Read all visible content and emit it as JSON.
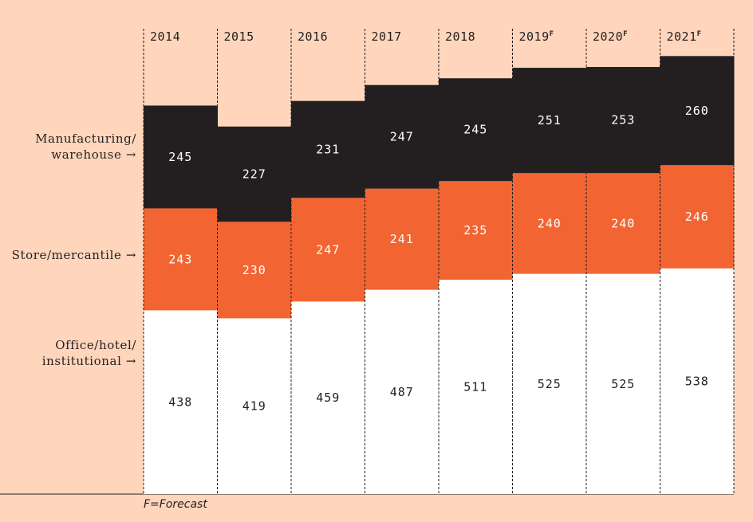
{
  "chart_data": {
    "type": "bar",
    "stacked": true,
    "categories": [
      "2014",
      "2015",
      "2016",
      "2017",
      "2018",
      "2019",
      "2020",
      "2021"
    ],
    "category_superscripts": [
      "",
      "",
      "",
      "",
      "",
      "F",
      "F",
      "F"
    ],
    "series": [
      {
        "name": "Office/hotel/\ninstitutional",
        "values": [
          438,
          419,
          459,
          487,
          511,
          525,
          525,
          538
        ],
        "color": "#FFFFFF",
        "label_color": "#231F20"
      },
      {
        "name": "Store/mercantile",
        "values": [
          243,
          230,
          247,
          241,
          235,
          240,
          240,
          246
        ],
        "color": "#F26532",
        "label_color": "#FFFFFF"
      },
      {
        "name": "Manufacturing/\nwarehouse",
        "values": [
          245,
          227,
          231,
          247,
          245,
          251,
          253,
          260
        ],
        "color": "#231F20",
        "label_color": "#FFFFFF"
      }
    ],
    "ylim": [
      0,
      1050
    ],
    "footnote": "F=Forecast"
  },
  "colors": {
    "background": "#FFD6BC",
    "divider": "#231F20"
  }
}
